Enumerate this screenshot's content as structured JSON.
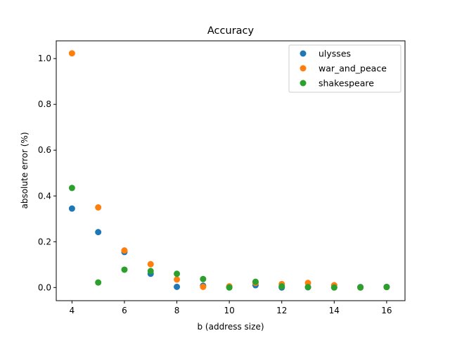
{
  "chart_data": {
    "type": "scatter",
    "title": "Accuracy",
    "xlabel": "b (address size)",
    "ylabel": "absolute error (%)",
    "xlim": [
      3.4,
      16.7
    ],
    "ylim": [
      -0.0575,
      1.0775
    ],
    "xticks": [
      4,
      6,
      8,
      10,
      12,
      14,
      16
    ],
    "yticks": [
      0.0,
      0.2,
      0.4,
      0.6,
      0.8,
      1.0
    ],
    "xtick_labels": [
      "4",
      "6",
      "8",
      "10",
      "12",
      "14",
      "16"
    ],
    "ytick_labels": [
      "0.0",
      "0.2",
      "0.4",
      "0.6",
      "0.8",
      "1.0"
    ],
    "legend": "top-right",
    "grid": false,
    "series": [
      {
        "name": "ulysses",
        "color": "#1f77b4",
        "x": [
          4,
          5,
          6,
          7,
          8,
          9,
          10,
          11,
          12,
          13,
          14,
          15,
          16
        ],
        "y": [
          0.345,
          0.242,
          0.155,
          0.06,
          0.003,
          0.008,
          0.001,
          0.01,
          0.0,
          0.001,
          0.001,
          0.002,
          0.003
        ]
      },
      {
        "name": "war_and_peace",
        "color": "#ff7f0e",
        "x": [
          4,
          5,
          6,
          7,
          8,
          9,
          10,
          11,
          12,
          13,
          14,
          15,
          16
        ],
        "y": [
          1.023,
          0.35,
          0.162,
          0.102,
          0.035,
          0.003,
          0.005,
          0.02,
          0.015,
          0.02,
          0.01,
          0.0,
          0.002
        ]
      },
      {
        "name": "shakespeare",
        "color": "#2ca02c",
        "x": [
          4,
          5,
          6,
          7,
          8,
          9,
          10,
          11,
          12,
          13,
          14,
          15,
          16
        ],
        "y": [
          0.435,
          0.022,
          0.078,
          0.072,
          0.06,
          0.037,
          0.0,
          0.025,
          0.005,
          0.002,
          0.0,
          0.0,
          0.002
        ]
      }
    ]
  }
}
